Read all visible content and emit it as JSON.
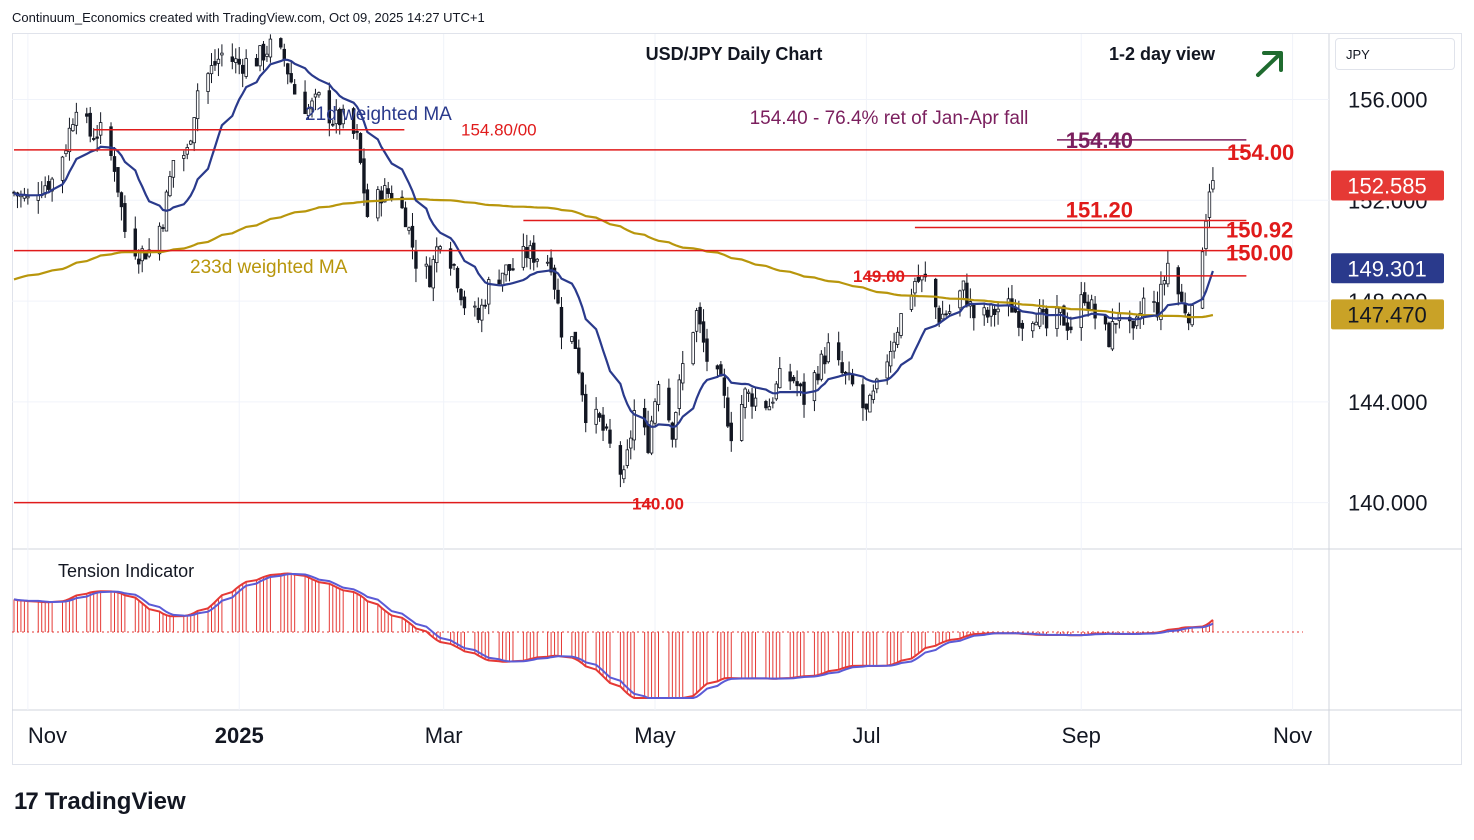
{
  "header": {
    "attribution": "Continuum_Economics created with TradingView.com, Oct 09, 2025 14:27 UTC+1"
  },
  "branding": {
    "logo_text": "TradingView"
  },
  "chart_data": {
    "type": "candlestick",
    "title": "USD/JPY Daily Chart",
    "view_label": "1-2 day view",
    "view_direction": "up",
    "currency": "JPY",
    "annotation": "154.40 - 76.4% ret of Jan-Apr fall",
    "ma_labels": {
      "short": "21d weighted MA",
      "long": "233d weighted MA"
    },
    "indicator_title": "Tension Indicator",
    "y_ticks": [
      "156.000",
      "152.000",
      "148.000",
      "144.000",
      "140.000"
    ],
    "y_tick_values": [
      156,
      152,
      148,
      144,
      140
    ],
    "x_ticks": [
      "Nov",
      "2025",
      "Mar",
      "May",
      "Jul",
      "Sep",
      "Nov"
    ],
    "ylim": [
      138.2,
      158.6
    ],
    "levels": [
      {
        "value": 154.8,
        "label": "154.80/00",
        "start": "2024-11-20",
        "end": "2025-02-09"
      },
      {
        "value": 154.4,
        "label": "154.40",
        "start": "2025-08-25",
        "end": "2025-10-10"
      },
      {
        "value": 154.0,
        "label": "154.00",
        "start": "2024-10-28",
        "end": "2025-10-10"
      },
      {
        "value": 151.2,
        "label": "151.20",
        "start": "2025-03-24",
        "end": "2025-10-10"
      },
      {
        "value": 150.92,
        "label": "150.92",
        "start": "2025-07-15",
        "end": "2025-10-10"
      },
      {
        "value": 150.0,
        "label": "150.00",
        "start": "2024-10-28",
        "end": "2025-10-10"
      },
      {
        "value": 149.0,
        "label": "149.00",
        "start": "2025-07-01",
        "end": "2025-10-10"
      },
      {
        "value": 140.0,
        "label": "140.00",
        "start": "2024-10-28",
        "end": "2025-04-22"
      }
    ],
    "badges": [
      {
        "value": 152.585,
        "label": "152.585",
        "color": "#e53935",
        "text_color": "#ffffff"
      },
      {
        "value": 149.301,
        "label": "149.301",
        "color": "#2a3a8c",
        "text_color": "#ffffff"
      },
      {
        "value": 147.47,
        "label": "147.470",
        "color": "#c9a227",
        "text_color": "#131722"
      }
    ],
    "colors": {
      "up": "#131722",
      "down": "#131722",
      "short_ma": "#2a3a8c",
      "long_ma": "#b8960c",
      "level": "#e01b1b",
      "annotation": "#7b1f5e",
      "tension_bar": "#e53935",
      "tension_line": "#5b5bd6",
      "arrow": "#1f6b2f"
    },
    "close_series": [
      [
        "2024-10-28",
        152.3
      ],
      [
        "2024-11-01",
        152.0
      ],
      [
        "2024-11-04",
        152.5
      ],
      [
        "2024-11-08",
        152.8
      ],
      [
        "2024-11-12",
        154.2
      ],
      [
        "2024-11-15",
        155.9
      ],
      [
        "2024-11-19",
        154.6
      ],
      [
        "2024-11-22",
        154.7
      ],
      [
        "2024-11-26",
        153.4
      ],
      [
        "2024-11-29",
        150.8
      ],
      [
        "2024-12-03",
        149.9
      ],
      [
        "2024-12-06",
        150.0
      ],
      [
        "2024-12-10",
        151.3
      ],
      [
        "2024-12-13",
        153.6
      ],
      [
        "2024-12-17",
        153.9
      ],
      [
        "2024-12-20",
        156.4
      ],
      [
        "2024-12-24",
        157.2
      ],
      [
        "2024-12-27",
        157.8
      ],
      [
        "2025-01-01",
        157.4
      ],
      [
        "2025-01-06",
        157.6
      ],
      [
        "2025-01-10",
        158.1
      ],
      [
        "2025-01-14",
        157.6
      ],
      [
        "2025-01-17",
        156.3
      ],
      [
        "2025-01-21",
        155.6
      ],
      [
        "2025-01-24",
        156.0
      ],
      [
        "2025-01-28",
        155.2
      ],
      [
        "2025-01-31",
        155.2
      ],
      [
        "2025-02-04",
        154.4
      ],
      [
        "2025-02-07",
        151.4
      ],
      [
        "2025-02-11",
        152.3
      ],
      [
        "2025-02-14",
        152.3
      ],
      [
        "2025-02-18",
        151.4
      ],
      [
        "2025-02-21",
        149.6
      ],
      [
        "2025-02-25",
        149.0
      ],
      [
        "2025-02-28",
        150.6
      ],
      [
        "2025-03-04",
        149.4
      ],
      [
        "2025-03-07",
        147.9
      ],
      [
        "2025-03-11",
        147.3
      ],
      [
        "2025-03-14",
        148.6
      ],
      [
        "2025-03-18",
        149.2
      ],
      [
        "2025-03-21",
        149.3
      ],
      [
        "2025-03-25",
        149.9
      ],
      [
        "2025-03-28",
        149.8
      ],
      [
        "2025-04-01",
        149.6
      ],
      [
        "2025-04-04",
        146.9
      ],
      [
        "2025-04-08",
        146.3
      ],
      [
        "2025-04-11",
        143.6
      ],
      [
        "2025-04-15",
        143.2
      ],
      [
        "2025-04-18",
        142.2
      ],
      [
        "2025-04-22",
        140.9
      ],
      [
        "2025-04-25",
        143.6
      ],
      [
        "2025-04-29",
        142.4
      ],
      [
        "2025-05-02",
        145.0
      ],
      [
        "2025-05-06",
        142.9
      ],
      [
        "2025-05-09",
        145.4
      ],
      [
        "2025-05-13",
        147.5
      ],
      [
        "2025-05-16",
        145.7
      ],
      [
        "2025-05-20",
        144.6
      ],
      [
        "2025-05-23",
        142.8
      ],
      [
        "2025-05-27",
        144.3
      ],
      [
        "2025-05-30",
        144.1
      ],
      [
        "2025-06-03",
        143.9
      ],
      [
        "2025-06-06",
        144.9
      ],
      [
        "2025-06-10",
        144.9
      ],
      [
        "2025-06-13",
        144.1
      ],
      [
        "2025-06-17",
        145.3
      ],
      [
        "2025-06-20",
        146.1
      ],
      [
        "2025-06-24",
        145.1
      ],
      [
        "2025-06-27",
        144.6
      ],
      [
        "2025-07-01",
        143.5
      ],
      [
        "2025-07-04",
        144.5
      ],
      [
        "2025-07-08",
        146.2
      ],
      [
        "2025-07-11",
        147.4
      ],
      [
        "2025-07-15",
        148.8
      ],
      [
        "2025-07-18",
        148.8
      ],
      [
        "2025-07-22",
        147.4
      ],
      [
        "2025-07-25",
        147.6
      ],
      [
        "2025-07-29",
        148.5
      ],
      [
        "2025-08-01",
        147.4
      ],
      [
        "2025-08-05",
        147.4
      ],
      [
        "2025-08-08",
        147.7
      ],
      [
        "2025-08-12",
        147.8
      ],
      [
        "2025-08-15",
        147.2
      ],
      [
        "2025-08-19",
        147.6
      ],
      [
        "2025-08-22",
        146.9
      ],
      [
        "2025-08-26",
        147.4
      ],
      [
        "2025-08-29",
        147.0
      ],
      [
        "2025-09-02",
        148.3
      ],
      [
        "2025-09-05",
        147.4
      ],
      [
        "2025-09-09",
        146.5
      ],
      [
        "2025-09-12",
        147.7
      ],
      [
        "2025-09-16",
        146.5
      ],
      [
        "2025-09-19",
        148.0
      ],
      [
        "2025-09-23",
        147.7
      ],
      [
        "2025-09-26",
        149.5
      ],
      [
        "2025-09-30",
        147.9
      ],
      [
        "2025-10-03",
        147.4
      ],
      [
        "2025-10-06",
        150.3
      ],
      [
        "2025-10-08",
        152.6
      ],
      [
        "2025-10-09",
        152.6
      ]
    ]
  }
}
